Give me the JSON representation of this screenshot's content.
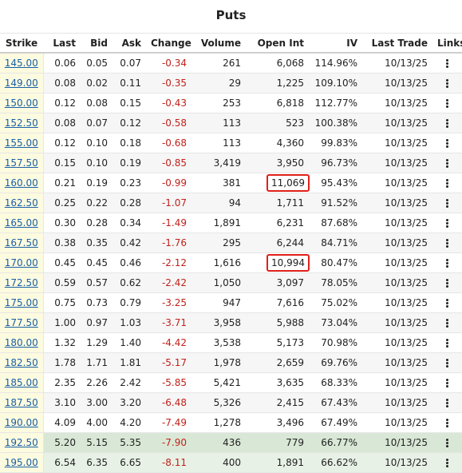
{
  "title": "Puts",
  "columns": [
    "Strike",
    "Last",
    "Bid",
    "Ask",
    "Change",
    "Volume",
    "Open Int",
    "IV",
    "Last Trade",
    "Links"
  ],
  "links_icon": "more-vertical-icon",
  "highlight_color": "#e0201a",
  "negative_color": "#c0221b",
  "link_color": "#1a5fa6",
  "rows": [
    {
      "strike": "145.00",
      "last": "0.06",
      "bid": "0.05",
      "ask": "0.07",
      "change": "-0.34",
      "volume": "261",
      "open_int": "6,068",
      "iv": "114.96%",
      "last_trade": "10/13/25",
      "highlight": false,
      "in_the_money": false
    },
    {
      "strike": "149.00",
      "last": "0.08",
      "bid": "0.02",
      "ask": "0.11",
      "change": "-0.35",
      "volume": "29",
      "open_int": "1,225",
      "iv": "109.10%",
      "last_trade": "10/13/25",
      "highlight": false,
      "in_the_money": false
    },
    {
      "strike": "150.00",
      "last": "0.12",
      "bid": "0.08",
      "ask": "0.15",
      "change": "-0.43",
      "volume": "253",
      "open_int": "6,818",
      "iv": "112.77%",
      "last_trade": "10/13/25",
      "highlight": false,
      "in_the_money": false
    },
    {
      "strike": "152.50",
      "last": "0.08",
      "bid": "0.07",
      "ask": "0.12",
      "change": "-0.58",
      "volume": "113",
      "open_int": "523",
      "iv": "100.38%",
      "last_trade": "10/13/25",
      "highlight": false,
      "in_the_money": false
    },
    {
      "strike": "155.00",
      "last": "0.12",
      "bid": "0.10",
      "ask": "0.18",
      "change": "-0.68",
      "volume": "113",
      "open_int": "4,360",
      "iv": "99.83%",
      "last_trade": "10/13/25",
      "highlight": false,
      "in_the_money": false
    },
    {
      "strike": "157.50",
      "last": "0.15",
      "bid": "0.10",
      "ask": "0.19",
      "change": "-0.85",
      "volume": "3,419",
      "open_int": "3,950",
      "iv": "96.73%",
      "last_trade": "10/13/25",
      "highlight": false,
      "in_the_money": false
    },
    {
      "strike": "160.00",
      "last": "0.21",
      "bid": "0.19",
      "ask": "0.23",
      "change": "-0.99",
      "volume": "381",
      "open_int": "11,069",
      "iv": "95.43%",
      "last_trade": "10/13/25",
      "highlight": true,
      "in_the_money": false
    },
    {
      "strike": "162.50",
      "last": "0.25",
      "bid": "0.22",
      "ask": "0.28",
      "change": "-1.07",
      "volume": "94",
      "open_int": "1,711",
      "iv": "91.52%",
      "last_trade": "10/13/25",
      "highlight": false,
      "in_the_money": false
    },
    {
      "strike": "165.00",
      "last": "0.30",
      "bid": "0.28",
      "ask": "0.34",
      "change": "-1.49",
      "volume": "1,891",
      "open_int": "6,231",
      "iv": "87.68%",
      "last_trade": "10/13/25",
      "highlight": false,
      "in_the_money": false
    },
    {
      "strike": "167.50",
      "last": "0.38",
      "bid": "0.35",
      "ask": "0.42",
      "change": "-1.76",
      "volume": "295",
      "open_int": "6,244",
      "iv": "84.71%",
      "last_trade": "10/13/25",
      "highlight": false,
      "in_the_money": false
    },
    {
      "strike": "170.00",
      "last": "0.45",
      "bid": "0.45",
      "ask": "0.46",
      "change": "-2.12",
      "volume": "1,616",
      "open_int": "10,994",
      "iv": "80.47%",
      "last_trade": "10/13/25",
      "highlight": true,
      "in_the_money": false
    },
    {
      "strike": "172.50",
      "last": "0.59",
      "bid": "0.57",
      "ask": "0.62",
      "change": "-2.42",
      "volume": "1,050",
      "open_int": "3,097",
      "iv": "78.05%",
      "last_trade": "10/13/25",
      "highlight": false,
      "in_the_money": false
    },
    {
      "strike": "175.00",
      "last": "0.75",
      "bid": "0.73",
      "ask": "0.79",
      "change": "-3.25",
      "volume": "947",
      "open_int": "7,616",
      "iv": "75.02%",
      "last_trade": "10/13/25",
      "highlight": false,
      "in_the_money": false
    },
    {
      "strike": "177.50",
      "last": "1.00",
      "bid": "0.97",
      "ask": "1.03",
      "change": "-3.71",
      "volume": "3,958",
      "open_int": "5,988",
      "iv": "73.04%",
      "last_trade": "10/13/25",
      "highlight": false,
      "in_the_money": false
    },
    {
      "strike": "180.00",
      "last": "1.32",
      "bid": "1.29",
      "ask": "1.40",
      "change": "-4.42",
      "volume": "3,538",
      "open_int": "5,173",
      "iv": "70.98%",
      "last_trade": "10/13/25",
      "highlight": false,
      "in_the_money": false
    },
    {
      "strike": "182.50",
      "last": "1.78",
      "bid": "1.71",
      "ask": "1.81",
      "change": "-5.17",
      "volume": "1,978",
      "open_int": "2,659",
      "iv": "69.76%",
      "last_trade": "10/13/25",
      "highlight": false,
      "in_the_money": false
    },
    {
      "strike": "185.00",
      "last": "2.35",
      "bid": "2.26",
      "ask": "2.42",
      "change": "-5.85",
      "volume": "5,421",
      "open_int": "3,635",
      "iv": "68.33%",
      "last_trade": "10/13/25",
      "highlight": false,
      "in_the_money": false
    },
    {
      "strike": "187.50",
      "last": "3.10",
      "bid": "3.00",
      "ask": "3.20",
      "change": "-6.48",
      "volume": "5,326",
      "open_int": "2,415",
      "iv": "67.43%",
      "last_trade": "10/13/25",
      "highlight": false,
      "in_the_money": false
    },
    {
      "strike": "190.00",
      "last": "4.09",
      "bid": "4.00",
      "ask": "4.20",
      "change": "-7.49",
      "volume": "1,278",
      "open_int": "3,496",
      "iv": "67.49%",
      "last_trade": "10/13/25",
      "highlight": false,
      "in_the_money": false
    },
    {
      "strike": "192.50",
      "last": "5.20",
      "bid": "5.15",
      "ask": "5.35",
      "change": "-7.90",
      "volume": "436",
      "open_int": "779",
      "iv": "66.77%",
      "last_trade": "10/13/25",
      "highlight": false,
      "in_the_money": true
    },
    {
      "strike": "195.00",
      "last": "6.54",
      "bid": "6.35",
      "ask": "6.65",
      "change": "-8.11",
      "volume": "400",
      "open_int": "1,891",
      "iv": "66.62%",
      "last_trade": "10/13/25",
      "highlight": false,
      "in_the_money": true
    }
  ]
}
